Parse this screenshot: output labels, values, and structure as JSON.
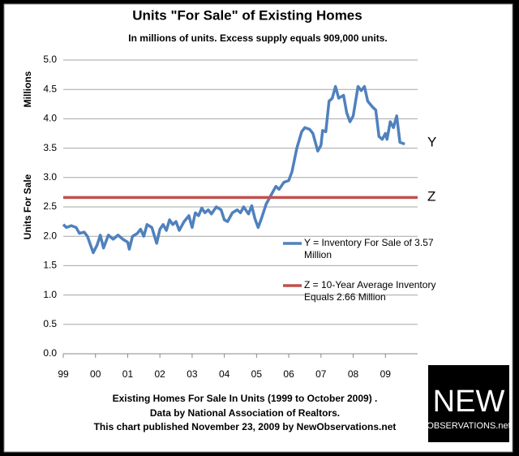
{
  "chart_data": {
    "type": "line",
    "title": "Units \"For Sale\" of Existing Homes",
    "subtitle": "In millions of units. Excess supply equals 909,000 units.",
    "y_unit_label": "Millions",
    "y_label": "Units For Sale",
    "xlim": [
      1999,
      2010
    ],
    "xticks": [
      {
        "value": 1999,
        "label": "99"
      },
      {
        "value": 2000,
        "label": "00"
      },
      {
        "value": 2001,
        "label": "01"
      },
      {
        "value": 2002,
        "label": "02"
      },
      {
        "value": 2003,
        "label": "03"
      },
      {
        "value": 2004,
        "label": "04"
      },
      {
        "value": 2005,
        "label": "05"
      },
      {
        "value": 2006,
        "label": "06"
      },
      {
        "value": 2007,
        "label": "07"
      },
      {
        "value": 2008,
        "label": "08"
      },
      {
        "value": 2009,
        "label": "09"
      }
    ],
    "ylim": [
      0,
      5
    ],
    "yticks": [
      {
        "value": 0,
        "label": "0.0"
      },
      {
        "value": 0.5,
        "label": "0.5"
      },
      {
        "value": 1,
        "label": "1.0"
      },
      {
        "value": 1.5,
        "label": "1.5"
      },
      {
        "value": 2,
        "label": "2.0"
      },
      {
        "value": 2.5,
        "label": "2.5"
      },
      {
        "value": 3,
        "label": "3.0"
      },
      {
        "value": 3.5,
        "label": "3.5"
      },
      {
        "value": 4,
        "label": "4.0"
      },
      {
        "value": 4.5,
        "label": "4.5"
      },
      {
        "value": 5,
        "label": "5.0"
      }
    ],
    "grid": true,
    "series": [
      {
        "name": "Y = Inventory For Sale of 3.57 Million",
        "color": "#4f81bd",
        "x": [
          1999.0,
          1999.1,
          1999.25,
          1999.4,
          1999.5,
          1999.65,
          1999.75,
          1999.93,
          2000.05,
          2000.15,
          2000.25,
          2000.4,
          2000.55,
          2000.7,
          2000.85,
          2001.0,
          2001.05,
          2001.15,
          2001.3,
          2001.4,
          2001.5,
          2001.6,
          2001.75,
          2001.9,
          2002.0,
          2002.1,
          2002.2,
          2002.3,
          2002.4,
          2002.5,
          2002.6,
          2002.75,
          2002.9,
          2003.0,
          2003.1,
          2003.2,
          2003.3,
          2003.4,
          2003.5,
          2003.6,
          2003.75,
          2003.9,
          2004.0,
          2004.1,
          2004.25,
          2004.4,
          2004.5,
          2004.6,
          2004.75,
          2004.85,
          2004.95,
          2005.05,
          2005.15,
          2005.3,
          2005.45,
          2005.6,
          2005.7,
          2005.85,
          2006.0,
          2006.1,
          2006.25,
          2006.4,
          2006.5,
          2006.65,
          2006.75,
          2006.9,
          2007.0,
          2007.05,
          2007.15,
          2007.25,
          2007.35,
          2007.45,
          2007.55,
          2007.7,
          2007.8,
          2007.9,
          2008.0,
          2008.15,
          2008.25,
          2008.35,
          2008.45,
          2008.6,
          2008.7,
          2008.8,
          2008.9,
          2009.0,
          2009.05,
          2009.15,
          2009.25,
          2009.35,
          2009.45,
          2009.6
        ],
        "values": [
          2.2,
          2.15,
          2.18,
          2.15,
          2.05,
          2.07,
          2.0,
          1.72,
          1.85,
          2.02,
          1.8,
          2.02,
          1.95,
          2.02,
          1.95,
          1.9,
          1.78,
          2.0,
          2.05,
          2.12,
          2.0,
          2.2,
          2.15,
          1.88,
          2.12,
          2.2,
          2.1,
          2.28,
          2.2,
          2.25,
          2.1,
          2.25,
          2.35,
          2.15,
          2.4,
          2.35,
          2.48,
          2.4,
          2.45,
          2.38,
          2.5,
          2.45,
          2.28,
          2.25,
          2.4,
          2.45,
          2.4,
          2.5,
          2.38,
          2.52,
          2.3,
          2.15,
          2.3,
          2.55,
          2.7,
          2.85,
          2.8,
          2.92,
          2.95,
          3.1,
          3.5,
          3.78,
          3.85,
          3.82,
          3.75,
          3.45,
          3.55,
          3.8,
          3.78,
          4.3,
          4.35,
          4.55,
          4.35,
          4.4,
          4.1,
          3.95,
          4.05,
          4.55,
          4.48,
          4.55,
          4.3,
          4.2,
          4.15,
          3.7,
          3.65,
          3.75,
          3.65,
          3.95,
          3.85,
          4.05,
          3.6,
          3.57
        ]
      },
      {
        "name": "Z = 10-Year Average Inventory Equals 2.66 Million",
        "color": "#c0504d",
        "x": [
          1999,
          2010
        ],
        "values": [
          2.66,
          2.66
        ]
      }
    ],
    "annotations": [
      "Y",
      "Z"
    ],
    "footer": [
      "Existing Homes For Sale In Units (1999 to October 2009) .",
      "Data by National Association of Realtors.",
      "This chart published November 23, 2009 by NewObservations.net"
    ]
  },
  "logo": {
    "name": "NEW",
    "sub": "OBSERVATIONS.net"
  }
}
